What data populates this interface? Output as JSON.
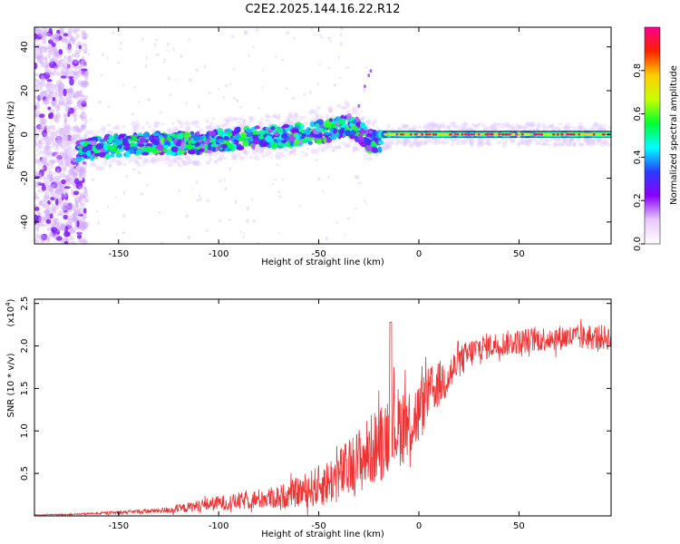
{
  "page": {
    "title": "C2E2.2025.144.16.22.R12"
  },
  "chart_data": [
    {
      "type": "heatmap",
      "xlabel": "Height of straight line (km)",
      "ylabel": "Frequency (Hz)",
      "xlim": [
        -192,
        96
      ],
      "ylim": [
        -50,
        49
      ],
      "xticks": [
        -150,
        -100,
        -50,
        0,
        50
      ],
      "yticks": [
        -40,
        -20,
        0,
        20,
        40
      ],
      "colorbar": {
        "label": "Normalized spectral amplitude",
        "range": [
          0,
          1
        ],
        "ticks": [
          0.0,
          0.2,
          0.4,
          0.6,
          0.8
        ],
        "tick_labels": [
          "0.0",
          "0.2",
          "0.4",
          "0.6",
          "0.8"
        ],
        "colors": [
          "#ffffff",
          "#e8c8ff",
          "#8a00ff",
          "#2a3cff",
          "#00ffff",
          "#00ff30",
          "#c8ff00",
          "#ffcc00",
          "#ff2200",
          "#ff0090"
        ]
      },
      "ridge": {
        "x": [
          -192,
          -170,
          -150,
          -130,
          -110,
          -100,
          -90,
          -80,
          -70,
          -60,
          -50,
          -40,
          -35,
          -30,
          -25,
          -20,
          -15,
          -10,
          0,
          10,
          20,
          30,
          40,
          50,
          60,
          70,
          80,
          96
        ],
        "y": [
          -8,
          -7,
          -5,
          -4,
          -4,
          -3,
          -2,
          -1,
          -1,
          0,
          1,
          3,
          4,
          2,
          -3,
          -3,
          -1,
          -1,
          0,
          0,
          0,
          0,
          0,
          0,
          0,
          0,
          0,
          0
        ]
      }
    },
    {
      "type": "line",
      "xlabel": "Height of straight line (km)",
      "ylabel": "SNR (10 * v/v)",
      "ymultiplier": "(x10",
      "ymultiplier_exp": "4",
      "ymultiplier_close": ")",
      "xlim": [
        -192,
        96
      ],
      "ylim": [
        0,
        2.55
      ],
      "xticks": [
        -150,
        -100,
        -50,
        0,
        50
      ],
      "yticks": [
        0.5,
        1.0,
        1.5,
        2.0,
        2.5
      ],
      "ytick_labels": [
        "0.5",
        "1.0",
        "1.5",
        "2.0",
        "2.5"
      ],
      "line_color": "#ee3333",
      "envelope": {
        "x": [
          -192,
          -170,
          -150,
          -130,
          -120,
          -110,
          -100,
          -90,
          -80,
          -70,
          -60,
          -50,
          -45,
          -40,
          -35,
          -30,
          -25,
          -20,
          -15,
          -10,
          -5,
          0,
          5,
          10,
          15,
          20,
          25,
          30,
          40,
          50,
          60,
          70,
          80,
          96
        ],
        "mean": [
          0.01,
          0.02,
          0.04,
          0.06,
          0.08,
          0.12,
          0.15,
          0.17,
          0.2,
          0.22,
          0.28,
          0.35,
          0.4,
          0.48,
          0.55,
          0.65,
          0.75,
          0.85,
          1.0,
          1.05,
          1.1,
          1.2,
          1.45,
          1.55,
          1.65,
          1.8,
          1.9,
          1.98,
          2.02,
          2.05,
          2.08,
          2.1,
          2.1,
          2.1
        ],
        "spread": [
          0.005,
          0.01,
          0.02,
          0.03,
          0.05,
          0.07,
          0.09,
          0.1,
          0.12,
          0.14,
          0.18,
          0.25,
          0.28,
          0.32,
          0.35,
          0.4,
          0.42,
          0.45,
          0.5,
          0.48,
          0.45,
          0.4,
          0.3,
          0.28,
          0.25,
          0.2,
          0.18,
          0.16,
          0.15,
          0.15,
          0.15,
          0.15,
          0.15,
          0.15
        ]
      }
    }
  ]
}
